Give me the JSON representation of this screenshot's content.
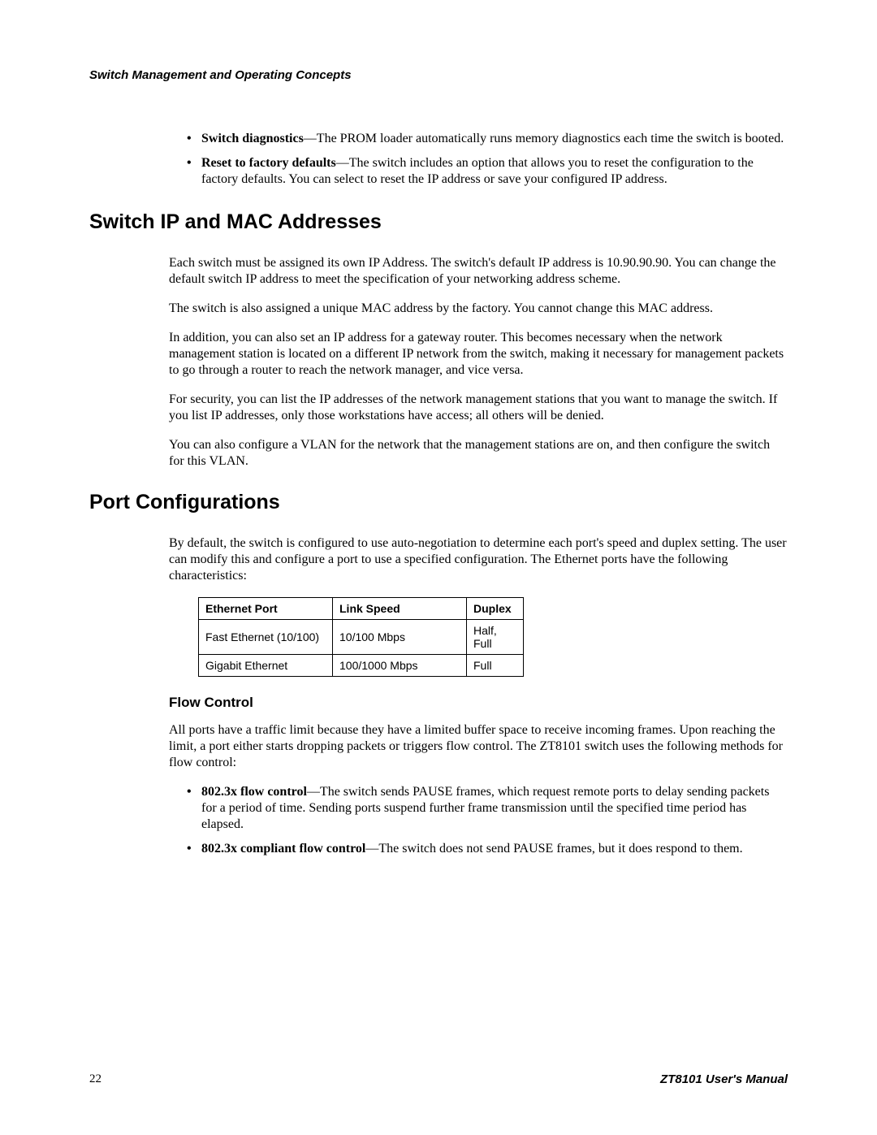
{
  "header": {
    "running_title": "Switch Management and Operating Concepts"
  },
  "intro_bullets": [
    {
      "term": "Switch diagnostics",
      "text": "—The PROM loader automatically runs memory diagnostics each time the switch is booted."
    },
    {
      "term": "Reset to factory defaults",
      "text": "—The switch includes an option that allows you to reset the configuration to the factory defaults. You can select to reset the IP address or save your configured IP address."
    }
  ],
  "section1": {
    "title": "Switch IP and MAC Addresses",
    "paragraphs": [
      "Each switch must be assigned its own IP Address. The switch's default IP address is 10.90.90.90. You can change the default switch IP address to meet the specification of your networking address scheme.",
      "The switch is also assigned a unique MAC address by the factory. You cannot change this MAC address.",
      "In addition, you can also set an IP address for a gateway router. This becomes necessary when the network management station is located on a different IP network from the switch, making it necessary for management packets to go through a router to reach the network manager, and vice versa.",
      "For security, you can list the IP addresses of the network management stations that you want to manage the switch. If you list IP addresses, only those workstations have access; all others will be denied.",
      "You can also configure a VLAN for the network that the management stations are on, and then configure the switch for this VLAN."
    ]
  },
  "section2": {
    "title": "Port Configurations",
    "intro": "By default, the switch is configured to use auto-negotiation to determine each port's speed and duplex setting. The user can modify this and configure a port to use a specified configuration. The Ethernet ports have the following characteristics:",
    "table": {
      "columns": [
        "Ethernet Port",
        "Link Speed",
        "Duplex"
      ],
      "rows": [
        [
          "Fast Ethernet (10/100)",
          "10/100 Mbps",
          "Half, Full"
        ],
        [
          "Gigabit Ethernet",
          "100/1000 Mbps",
          "Full"
        ]
      ]
    },
    "subsection": {
      "title": "Flow Control",
      "intro": "All ports have a traffic limit because they have a limited buffer space to receive incoming frames. Upon reaching the limit, a port either starts dropping packets or triggers flow control. The ZT8101 switch uses the following methods for flow control:",
      "bullets": [
        {
          "term": "802.3x flow control",
          "text": "—The switch sends PAUSE frames, which request remote ports to delay sending packets for a period of time. Sending ports suspend further frame transmission until the specified time period has elapsed."
        },
        {
          "term": "802.3x compliant flow control",
          "text": "—The switch does not send PAUSE frames, but it does respond to them."
        }
      ]
    }
  },
  "footer": {
    "page_number": "22",
    "manual_title": "ZT8101 User's Manual"
  }
}
